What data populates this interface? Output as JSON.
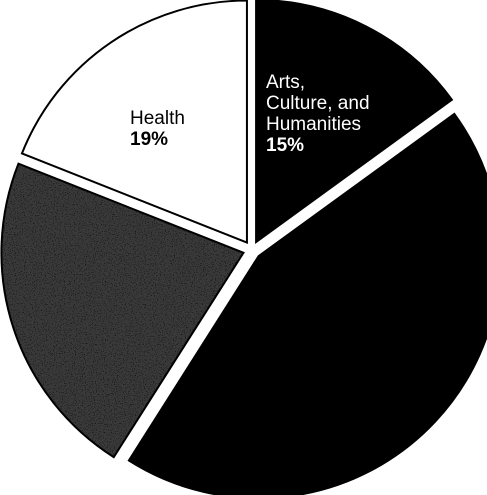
{
  "chart_data": {
    "type": "pie",
    "title": "",
    "slices": [
      {
        "label": "Arts, Culture, and Humanities",
        "label_lines": [
          "Arts,",
          "Culture, and",
          "Humanities"
        ],
        "percent_label": "15%",
        "value": 15,
        "fill": "#000000",
        "exploded": true,
        "shown_labels": true
      },
      {
        "label": "",
        "label_lines": [],
        "percent_label": "",
        "value": 44,
        "fill": "#000000",
        "exploded": true,
        "shown_labels": false
      },
      {
        "label": "",
        "label_lines": [],
        "percent_label": "",
        "value": 22,
        "fill": "#3a3a3a",
        "pattern": "speckled",
        "exploded": true,
        "shown_labels": false
      },
      {
        "label": "Health",
        "label_lines": [
          "Health"
        ],
        "percent_label": "19%",
        "value": 19,
        "fill": "#ffffff",
        "exploded": true,
        "shown_labels": true
      }
    ],
    "start_angle_deg": 0,
    "direction": "clockwise",
    "legend": "none",
    "label_placement": "inside"
  }
}
